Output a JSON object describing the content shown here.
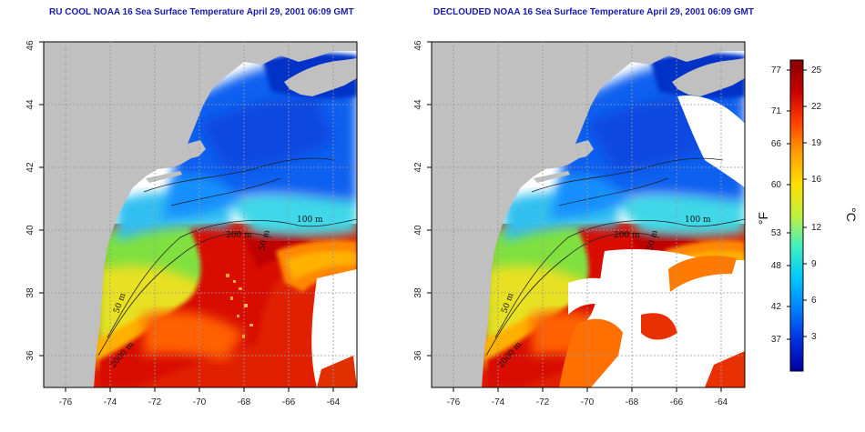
{
  "panels": [
    {
      "title": "RU COOL NOAA 16 Sea Surface Temperature April 29, 2001 06:09 GMT",
      "contours": [
        "100 m",
        "200 m",
        "50 m",
        "2000 m",
        "50 m"
      ]
    },
    {
      "title": "DECLOUDED NOAA 16 Sea Surface Temperature April 29, 2001 06:09 GMT",
      "contours": [
        "100 m",
        "200 m",
        "50 m",
        "2000 m",
        "50 m"
      ]
    }
  ],
  "axes": {
    "lat_ticks": [
      "36",
      "38",
      "40",
      "42",
      "44",
      "46"
    ],
    "lon_ticks": [
      "-76",
      "-74",
      "-72",
      "-70",
      "-68",
      "-66",
      "-64"
    ]
  },
  "colorbar": {
    "fahrenheit_ticks": [
      "77",
      "71",
      "66",
      "60",
      "53",
      "48",
      "42",
      "37"
    ],
    "celsius_ticks": [
      "25",
      "22",
      "19",
      "16",
      "12",
      "9",
      "6",
      "3"
    ],
    "fahrenheit_unit": "°F",
    "celsius_unit": "°C",
    "colors": [
      "#0000a0",
      "#0030e0",
      "#0080ff",
      "#00c8ff",
      "#40f0c0",
      "#c0f040",
      "#ffe000",
      "#ffa000",
      "#ff4000",
      "#c80000",
      "#880000"
    ]
  },
  "colors": {
    "land": "#c0c0c0",
    "water_missing": "#ffffff",
    "title": "#1a1aa8"
  }
}
